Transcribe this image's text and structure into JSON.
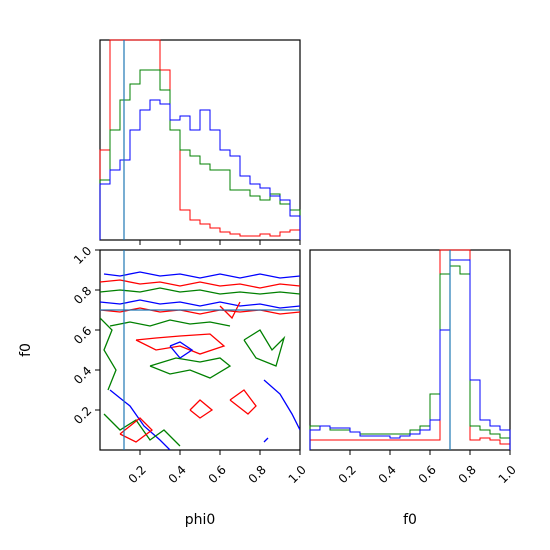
{
  "chart_data": {
    "type": "corner",
    "parameters": [
      "phi0",
      "f0"
    ],
    "truth": {
      "phi0": 0.12,
      "f0": 0.7,
      "color": "#1f77b4"
    },
    "series_colors": [
      "#ff0000",
      "#008000",
      "#0000ff"
    ],
    "ticks": {
      "phi0": [
        "0.2",
        "0.4",
        "0.6",
        "0.8",
        "1.0"
      ],
      "f0": [
        "0.2",
        "0.4",
        "0.6",
        "0.8",
        "1.0"
      ]
    },
    "axis_ranges": {
      "phi0": [
        0.0,
        1.0
      ],
      "f0": [
        0.0,
        1.0
      ]
    },
    "panels": [
      {
        "id": "hist-phi0",
        "type": "step-histogram",
        "x": "phi0",
        "bins": [
          0.0,
          0.05,
          0.1,
          0.15,
          0.2,
          0.25,
          0.3,
          0.35,
          0.4,
          0.45,
          0.5,
          0.55,
          0.6,
          0.65,
          0.7,
          0.75,
          0.8,
          0.85,
          0.9,
          0.95,
          1.0
        ],
        "ylim": [
          0,
          1.0
        ],
        "series": [
          {
            "color": "#ff0000",
            "values": [
              0.45,
              1.0,
              1.0,
              1.0,
              1.0,
              1.0,
              0.85,
              0.55,
              0.15,
              0.1,
              0.08,
              0.06,
              0.04,
              0.03,
              0.02,
              0.02,
              0.03,
              0.02,
              0.04,
              0.05
            ]
          },
          {
            "color": "#008000",
            "values": [
              0.3,
              0.55,
              0.7,
              0.78,
              0.85,
              0.85,
              0.75,
              0.55,
              0.45,
              0.42,
              0.38,
              0.35,
              0.35,
              0.25,
              0.25,
              0.22,
              0.2,
              0.23,
              0.18,
              0.15
            ]
          },
          {
            "color": "#0000ff",
            "values": [
              0.28,
              0.35,
              0.4,
              0.55,
              0.65,
              0.7,
              0.68,
              0.6,
              0.62,
              0.55,
              0.65,
              0.55,
              0.45,
              0.42,
              0.32,
              0.28,
              0.26,
              0.22,
              0.2,
              0.12
            ]
          }
        ]
      },
      {
        "id": "hist-f0",
        "type": "step-histogram",
        "x": "f0",
        "bins": [
          0.0,
          0.05,
          0.1,
          0.15,
          0.2,
          0.25,
          0.3,
          0.35,
          0.4,
          0.45,
          0.5,
          0.55,
          0.6,
          0.65,
          0.7,
          0.75,
          0.8,
          0.85,
          0.9,
          0.95,
          1.0
        ],
        "ylim": [
          0,
          1.0
        ],
        "series": [
          {
            "color": "#ff0000",
            "values": [
              0.05,
              0.05,
              0.05,
              0.05,
              0.05,
              0.05,
              0.05,
              0.05,
              0.05,
              0.05,
              0.05,
              0.05,
              0.05,
              1.0,
              1.0,
              1.0,
              0.05,
              0.06,
              0.05,
              0.03
            ]
          },
          {
            "color": "#008000",
            "values": [
              0.12,
              0.12,
              0.1,
              0.1,
              0.09,
              0.08,
              0.08,
              0.08,
              0.08,
              0.08,
              0.1,
              0.12,
              0.28,
              0.88,
              0.92,
              0.88,
              0.12,
              0.1,
              0.08,
              0.06
            ]
          },
          {
            "color": "#0000ff",
            "values": [
              0.1,
              0.12,
              0.11,
              0.11,
              0.09,
              0.07,
              0.07,
              0.07,
              0.06,
              0.07,
              0.08,
              0.1,
              0.15,
              0.6,
              0.95,
              0.95,
              0.35,
              0.15,
              0.12,
              0.1
            ]
          }
        ]
      },
      {
        "id": "contour-phi0-f0",
        "type": "contour",
        "x": "phi0",
        "y": "f0",
        "contours": [
          {
            "color": "#0000ff",
            "points": [
              [
                0.02,
                0.88
              ],
              [
                0.1,
                0.87
              ],
              [
                0.2,
                0.89
              ],
              [
                0.3,
                0.87
              ],
              [
                0.4,
                0.88
              ],
              [
                0.5,
                0.86
              ],
              [
                0.6,
                0.88
              ],
              [
                0.7,
                0.86
              ],
              [
                0.8,
                0.88
              ],
              [
                0.9,
                0.86
              ],
              [
                1.0,
                0.87
              ]
            ]
          },
          {
            "color": "#ff0000",
            "points": [
              [
                0.0,
                0.84
              ],
              [
                0.1,
                0.85
              ],
              [
                0.2,
                0.83
              ],
              [
                0.3,
                0.84
              ],
              [
                0.4,
                0.82
              ],
              [
                0.5,
                0.84
              ],
              [
                0.6,
                0.82
              ],
              [
                0.7,
                0.83
              ],
              [
                0.8,
                0.81
              ],
              [
                0.9,
                0.83
              ],
              [
                1.0,
                0.82
              ]
            ]
          },
          {
            "color": "#008000",
            "points": [
              [
                0.0,
                0.79
              ],
              [
                0.1,
                0.8
              ],
              [
                0.2,
                0.79
              ],
              [
                0.3,
                0.81
              ],
              [
                0.4,
                0.79
              ],
              [
                0.5,
                0.8
              ],
              [
                0.6,
                0.78
              ],
              [
                0.7,
                0.79
              ],
              [
                0.8,
                0.78
              ],
              [
                0.9,
                0.79
              ],
              [
                1.0,
                0.78
              ]
            ]
          },
          {
            "color": "#0000ff",
            "points": [
              [
                0.0,
                0.74
              ],
              [
                0.1,
                0.73
              ],
              [
                0.2,
                0.75
              ],
              [
                0.3,
                0.73
              ],
              [
                0.4,
                0.74
              ],
              [
                0.5,
                0.72
              ],
              [
                0.6,
                0.74
              ],
              [
                0.7,
                0.72
              ],
              [
                0.8,
                0.73
              ],
              [
                0.9,
                0.71
              ],
              [
                1.0,
                0.72
              ]
            ]
          },
          {
            "color": "#ff0000",
            "points": [
              [
                0.0,
                0.7
              ],
              [
                0.1,
                0.69
              ],
              [
                0.2,
                0.71
              ],
              [
                0.3,
                0.69
              ],
              [
                0.4,
                0.7
              ],
              [
                0.5,
                0.68
              ],
              [
                0.6,
                0.7
              ],
              [
                0.7,
                0.69
              ],
              [
                0.8,
                0.7
              ],
              [
                0.9,
                0.68
              ],
              [
                1.0,
                0.69
              ]
            ]
          },
          {
            "color": "#008000",
            "points": [
              [
                0.05,
                0.62
              ],
              [
                0.15,
                0.64
              ],
              [
                0.25,
                0.62
              ],
              [
                0.35,
                0.65
              ],
              [
                0.45,
                0.63
              ],
              [
                0.55,
                0.64
              ],
              [
                0.65,
                0.62
              ]
            ]
          },
          {
            "color": "#ff0000",
            "points": [
              [
                0.18,
                0.55
              ],
              [
                0.28,
                0.5
              ],
              [
                0.4,
                0.52
              ],
              [
                0.5,
                0.48
              ],
              [
                0.62,
                0.52
              ],
              [
                0.55,
                0.58
              ],
              [
                0.4,
                0.57
              ],
              [
                0.28,
                0.56
              ],
              [
                0.18,
                0.55
              ]
            ]
          },
          {
            "color": "#0000ff",
            "points": [
              [
                0.35,
                0.52
              ],
              [
                0.4,
                0.46
              ],
              [
                0.46,
                0.5
              ],
              [
                0.4,
                0.54
              ],
              [
                0.35,
                0.52
              ]
            ]
          },
          {
            "color": "#008000",
            "points": [
              [
                0.25,
                0.42
              ],
              [
                0.35,
                0.38
              ],
              [
                0.45,
                0.4
              ],
              [
                0.55,
                0.36
              ],
              [
                0.65,
                0.42
              ],
              [
                0.6,
                0.46
              ],
              [
                0.5,
                0.44
              ],
              [
                0.38,
                0.46
              ],
              [
                0.25,
                0.42
              ]
            ]
          },
          {
            "color": "#008000",
            "points": [
              [
                0.72,
                0.55
              ],
              [
                0.8,
                0.6
              ],
              [
                0.86,
                0.5
              ],
              [
                0.92,
                0.56
              ],
              [
                0.88,
                0.42
              ],
              [
                0.78,
                0.46
              ],
              [
                0.72,
                0.55
              ]
            ]
          },
          {
            "color": "#ff0000",
            "points": [
              [
                0.65,
                0.25
              ],
              [
                0.72,
                0.3
              ],
              [
                0.78,
                0.22
              ],
              [
                0.74,
                0.18
              ],
              [
                0.65,
                0.25
              ]
            ]
          },
          {
            "color": "#ff0000",
            "points": [
              [
                0.45,
                0.2
              ],
              [
                0.5,
                0.25
              ],
              [
                0.56,
                0.2
              ],
              [
                0.5,
                0.16
              ],
              [
                0.45,
                0.2
              ]
            ]
          },
          {
            "color": "#0000ff",
            "points": [
              [
                0.05,
                0.3
              ],
              [
                0.15,
                0.22
              ],
              [
                0.22,
                0.12
              ],
              [
                0.3,
                0.05
              ],
              [
                0.35,
                0.0
              ]
            ]
          },
          {
            "color": "#008000",
            "points": [
              [
                0.02,
                0.18
              ],
              [
                0.1,
                0.1
              ],
              [
                0.18,
                0.15
              ],
              [
                0.25,
                0.05
              ],
              [
                0.32,
                0.1
              ],
              [
                0.4,
                0.02
              ]
            ]
          },
          {
            "color": "#ff0000",
            "points": [
              [
                0.1,
                0.08
              ],
              [
                0.18,
                0.04
              ],
              [
                0.26,
                0.1
              ],
              [
                0.2,
                0.16
              ],
              [
                0.1,
                0.08
              ]
            ]
          },
          {
            "color": "#0000ff",
            "points": [
              [
                0.82,
                0.35
              ],
              [
                0.9,
                0.28
              ],
              [
                0.96,
                0.18
              ],
              [
                1.0,
                0.1
              ]
            ]
          },
          {
            "color": "#008000",
            "points": [
              [
                0.0,
                0.66
              ],
              [
                0.06,
                0.6
              ],
              [
                0.02,
                0.5
              ],
              [
                0.08,
                0.4
              ],
              [
                0.04,
                0.3
              ]
            ]
          },
          {
            "color": "#ff0000",
            "points": [
              [
                0.6,
                0.72
              ],
              [
                0.66,
                0.66
              ],
              [
                0.7,
                0.74
              ]
            ]
          },
          {
            "color": "#0000ff",
            "points": [
              [
                0.82,
                0.04
              ],
              [
                0.84,
                0.06
              ]
            ]
          }
        ]
      }
    ]
  }
}
